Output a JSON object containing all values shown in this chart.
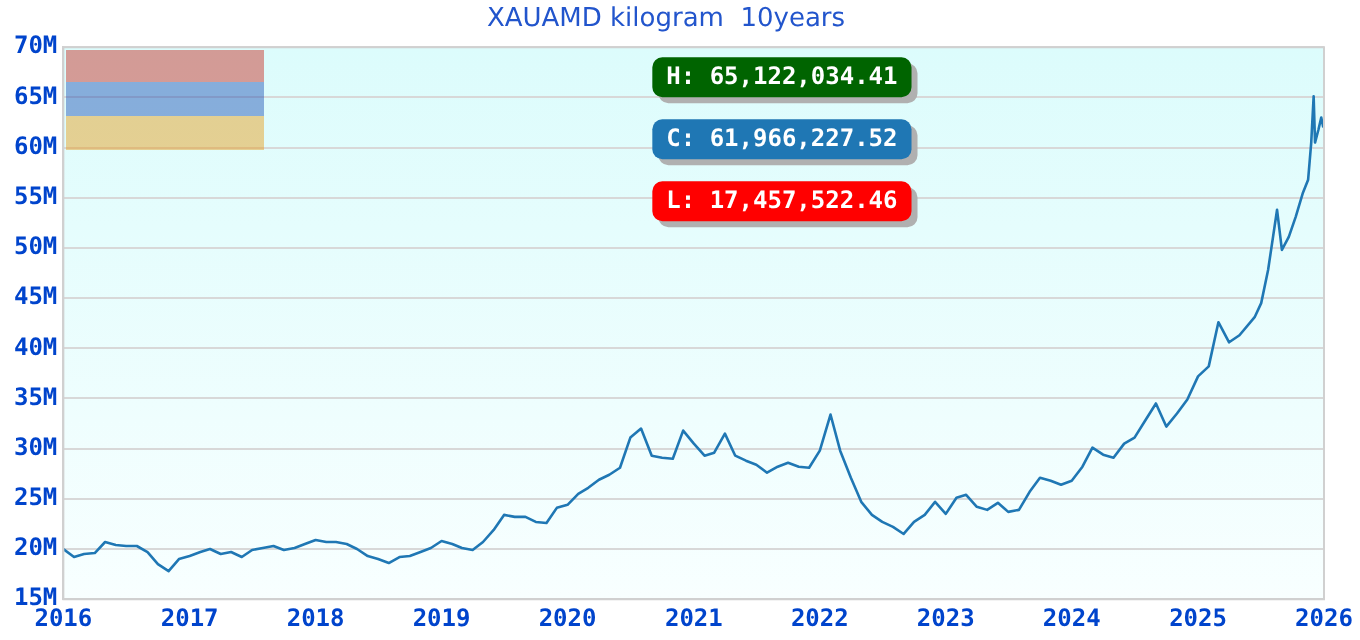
{
  "chart_data": {
    "type": "line",
    "title": "XAUAMD kilogram  10years",
    "x": [
      "2016-01-01",
      "2016-02-01",
      "2016-03-01",
      "2016-04-01",
      "2016-05-01",
      "2016-06-01",
      "2016-07-01",
      "2016-08-01",
      "2016-09-01",
      "2016-10-01",
      "2016-11-01",
      "2016-12-01",
      "2017-01-01",
      "2017-02-01",
      "2017-03-01",
      "2017-04-01",
      "2017-05-01",
      "2017-06-01",
      "2017-07-01",
      "2017-08-01",
      "2017-09-01",
      "2017-10-01",
      "2017-11-01",
      "2017-12-01",
      "2018-01-01",
      "2018-02-01",
      "2018-03-01",
      "2018-04-01",
      "2018-05-01",
      "2018-06-01",
      "2018-07-01",
      "2018-08-01",
      "2018-09-01",
      "2018-10-01",
      "2018-11-01",
      "2018-12-01",
      "2019-01-01",
      "2019-02-01",
      "2019-03-01",
      "2019-04-01",
      "2019-05-01",
      "2019-06-01",
      "2019-07-01",
      "2019-08-01",
      "2019-09-01",
      "2019-10-01",
      "2019-11-01",
      "2019-12-01",
      "2020-01-01",
      "2020-02-01",
      "2020-03-01",
      "2020-04-01",
      "2020-05-01",
      "2020-06-01",
      "2020-07-01",
      "2020-08-01",
      "2020-09-01",
      "2020-10-01",
      "2020-11-01",
      "2020-12-01",
      "2021-01-01",
      "2021-02-01",
      "2021-03-01",
      "2021-04-01",
      "2021-05-01",
      "2021-06-01",
      "2021-07-01",
      "2021-08-01",
      "2021-09-01",
      "2021-10-01",
      "2021-11-01",
      "2021-12-01",
      "2022-01-01",
      "2022-02-01",
      "2022-03-01",
      "2022-04-01",
      "2022-05-01",
      "2022-06-01",
      "2022-07-01",
      "2022-08-01",
      "2022-09-01",
      "2022-10-01",
      "2022-11-01",
      "2022-12-01",
      "2023-01-01",
      "2023-02-01",
      "2023-03-01",
      "2023-04-01",
      "2023-05-01",
      "2023-06-01",
      "2023-07-01",
      "2023-08-01",
      "2023-09-01",
      "2023-10-01",
      "2023-11-01",
      "2023-12-01",
      "2024-01-01",
      "2024-02-01",
      "2024-03-01",
      "2024-04-01",
      "2024-05-01",
      "2024-06-01",
      "2024-07-01",
      "2024-08-01",
      "2024-09-01",
      "2024-10-01",
      "2024-11-01",
      "2024-12-01",
      "2025-01-01",
      "2025-02-01",
      "2025-03-01",
      "2025-04-01",
      "2025-05-01",
      "2025-06-14",
      "2025-07-03",
      "2025-07-23",
      "2025-08-18",
      "2025-09-01",
      "2025-09-21",
      "2025-10-11",
      "2025-11-01",
      "2025-11-16",
      "2025-11-25",
      "2025-12-02",
      "2025-12-06",
      "2025-12-16",
      "2025-12-24",
      "2025-12-30"
    ],
    "series": [
      {
        "color": "#1f77b4",
        "values": [
          20000000,
          19200000,
          19500000,
          19600000,
          20700000,
          20400000,
          20300000,
          20300000,
          19700000,
          18500000,
          17800000,
          19000000,
          19300000,
          19700000,
          20000000,
          19500000,
          19700000,
          19200000,
          19900000,
          20100000,
          20300000,
          19900000,
          20100000,
          20500000,
          20900000,
          20700000,
          20700000,
          20500000,
          20000000,
          19300000,
          19000000,
          18600000,
          19200000,
          19300000,
          19700000,
          20100000,
          20800000,
          20500000,
          20100000,
          19900000,
          20700000,
          21900000,
          23400000,
          23200000,
          23200000,
          22700000,
          22600000,
          24100000,
          24400000,
          25500000,
          26100000,
          26900000,
          27400000,
          28100000,
          31100000,
          32000000,
          29300000,
          29100000,
          29000000,
          31800000,
          30500000,
          29300000,
          29600000,
          31500000,
          29300000,
          28800000,
          28400000,
          27600000,
          28200000,
          28600000,
          28200000,
          28100000,
          29800000,
          33400000,
          29800000,
          27100000,
          24700000,
          23400000,
          22700000,
          22200000,
          21500000,
          22700000,
          23400000,
          24700000,
          23500000,
          25100000,
          25400000,
          24200000,
          23900000,
          24600000,
          23700000,
          23900000,
          25700000,
          27100000,
          26800000,
          26400000,
          26800000,
          28200000,
          30100000,
          29400000,
          29100000,
          30500000,
          31100000,
          32800000,
          34500000,
          32200000,
          33500000,
          34900000,
          37200000,
          38200000,
          42600000,
          40600000,
          41300000,
          43100000,
          44500000,
          47800000,
          53800000,
          49800000,
          51100000,
          53100000,
          55500000,
          56800000,
          60500000,
          65100000,
          60500000,
          61800000,
          63000000,
          62000000
        ]
      }
    ],
    "xlim": [
      "2016-01-01",
      "2026-01-01"
    ],
    "xticks": [
      "2016",
      "2017",
      "2018",
      "2019",
      "2020",
      "2021",
      "2022",
      "2023",
      "2024",
      "2025",
      "2026"
    ],
    "ylim": [
      15000000,
      70000000
    ],
    "yticks": [
      {
        "value": 15000000,
        "label": "15M"
      },
      {
        "value": 20000000,
        "label": "20M"
      },
      {
        "value": 25000000,
        "label": "25M"
      },
      {
        "value": 30000000,
        "label": "30M"
      },
      {
        "value": 35000000,
        "label": "35M"
      },
      {
        "value": 40000000,
        "label": "40M"
      },
      {
        "value": 45000000,
        "label": "45M"
      },
      {
        "value": 50000000,
        "label": "50M"
      },
      {
        "value": 55000000,
        "label": "55M"
      },
      {
        "value": 60000000,
        "label": "60M"
      },
      {
        "value": 65000000,
        "label": "65M"
      },
      {
        "value": 70000000,
        "label": "70M"
      }
    ],
    "grid": "y",
    "annotations": [
      "H: 65,122,034.41",
      "C: 61,966,227.52",
      "L: 17,457,522.46"
    ]
  }
}
